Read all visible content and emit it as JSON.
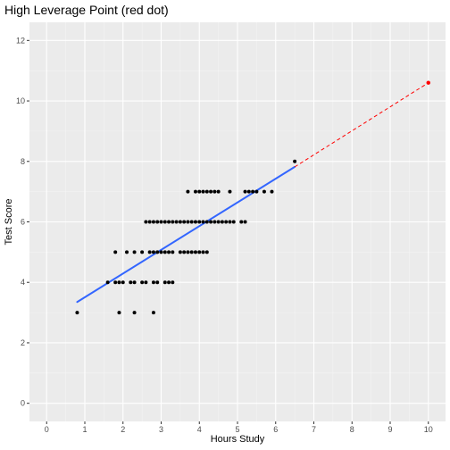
{
  "chart_data": {
    "type": "scatter",
    "title": "High Leverage Point (red dot)",
    "xlabel": "Hours Study",
    "ylabel": "Test Score",
    "xlim": [
      -0.45,
      10.45
    ],
    "ylim": [
      -0.6,
      12.6
    ],
    "x_ticks": [
      0,
      1,
      2,
      3,
      4,
      5,
      6,
      7,
      8,
      9,
      10
    ],
    "y_ticks": [
      0,
      2,
      4,
      6,
      8,
      10,
      12
    ],
    "grid": true,
    "colors": {
      "panel": "#ebebeb",
      "grid_major": "#ffffff",
      "grid_minor": "#f5f5f5",
      "points": "#000000",
      "fit_line": "#3366ff",
      "leverage_point": "#ff0000",
      "leverage_line": "#ff0000",
      "tick_text": "#4d4d4d"
    },
    "series": [
      {
        "kind": "points",
        "values": [
          [
            0.8,
            3
          ],
          [
            1.9,
            3
          ],
          [
            2.3,
            3
          ],
          [
            2.8,
            3
          ],
          [
            1.6,
            4
          ],
          [
            1.8,
            4
          ],
          [
            1.9,
            4
          ],
          [
            2.0,
            4
          ],
          [
            2.2,
            4
          ],
          [
            2.3,
            4
          ],
          [
            2.5,
            4
          ],
          [
            2.6,
            4
          ],
          [
            2.8,
            4
          ],
          [
            2.9,
            4
          ],
          [
            3.1,
            4
          ],
          [
            3.2,
            4
          ],
          [
            3.3,
            4
          ],
          [
            1.8,
            5
          ],
          [
            2.1,
            5
          ],
          [
            2.3,
            5
          ],
          [
            2.5,
            5
          ],
          [
            2.7,
            5
          ],
          [
            2.8,
            5
          ],
          [
            2.9,
            5
          ],
          [
            3.0,
            5
          ],
          [
            3.1,
            5
          ],
          [
            3.2,
            5
          ],
          [
            3.3,
            5
          ],
          [
            3.5,
            5
          ],
          [
            3.6,
            5
          ],
          [
            3.7,
            5
          ],
          [
            3.8,
            5
          ],
          [
            3.9,
            5
          ],
          [
            4.0,
            5
          ],
          [
            4.1,
            5
          ],
          [
            4.2,
            5
          ],
          [
            2.6,
            6
          ],
          [
            2.7,
            6
          ],
          [
            2.8,
            6
          ],
          [
            2.9,
            6
          ],
          [
            3.0,
            6
          ],
          [
            3.1,
            6
          ],
          [
            3.2,
            6
          ],
          [
            3.3,
            6
          ],
          [
            3.4,
            6
          ],
          [
            3.5,
            6
          ],
          [
            3.6,
            6
          ],
          [
            3.7,
            6
          ],
          [
            3.8,
            6
          ],
          [
            3.9,
            6
          ],
          [
            4.0,
            6
          ],
          [
            4.1,
            6
          ],
          [
            4.2,
            6
          ],
          [
            4.3,
            6
          ],
          [
            4.4,
            6
          ],
          [
            4.5,
            6
          ],
          [
            4.6,
            6
          ],
          [
            4.7,
            6
          ],
          [
            4.8,
            6
          ],
          [
            4.9,
            6
          ],
          [
            5.1,
            6
          ],
          [
            5.2,
            6
          ],
          [
            3.7,
            7
          ],
          [
            3.9,
            7
          ],
          [
            4.0,
            7
          ],
          [
            4.1,
            7
          ],
          [
            4.2,
            7
          ],
          [
            4.3,
            7
          ],
          [
            4.4,
            7
          ],
          [
            4.5,
            7
          ],
          [
            4.8,
            7
          ],
          [
            5.2,
            7
          ],
          [
            5.3,
            7
          ],
          [
            5.4,
            7
          ],
          [
            5.5,
            7
          ],
          [
            5.7,
            7
          ],
          [
            5.9,
            7
          ],
          [
            6.5,
            8
          ]
        ]
      },
      {
        "kind": "line",
        "values": [
          [
            0.8,
            3.35
          ],
          [
            6.5,
            7.82
          ]
        ]
      },
      {
        "kind": "dashed-line",
        "values": [
          [
            6.5,
            7.82
          ],
          [
            10,
            10.6
          ]
        ]
      },
      {
        "kind": "highlight-point",
        "values": [
          [
            10,
            10.6
          ]
        ]
      }
    ]
  }
}
